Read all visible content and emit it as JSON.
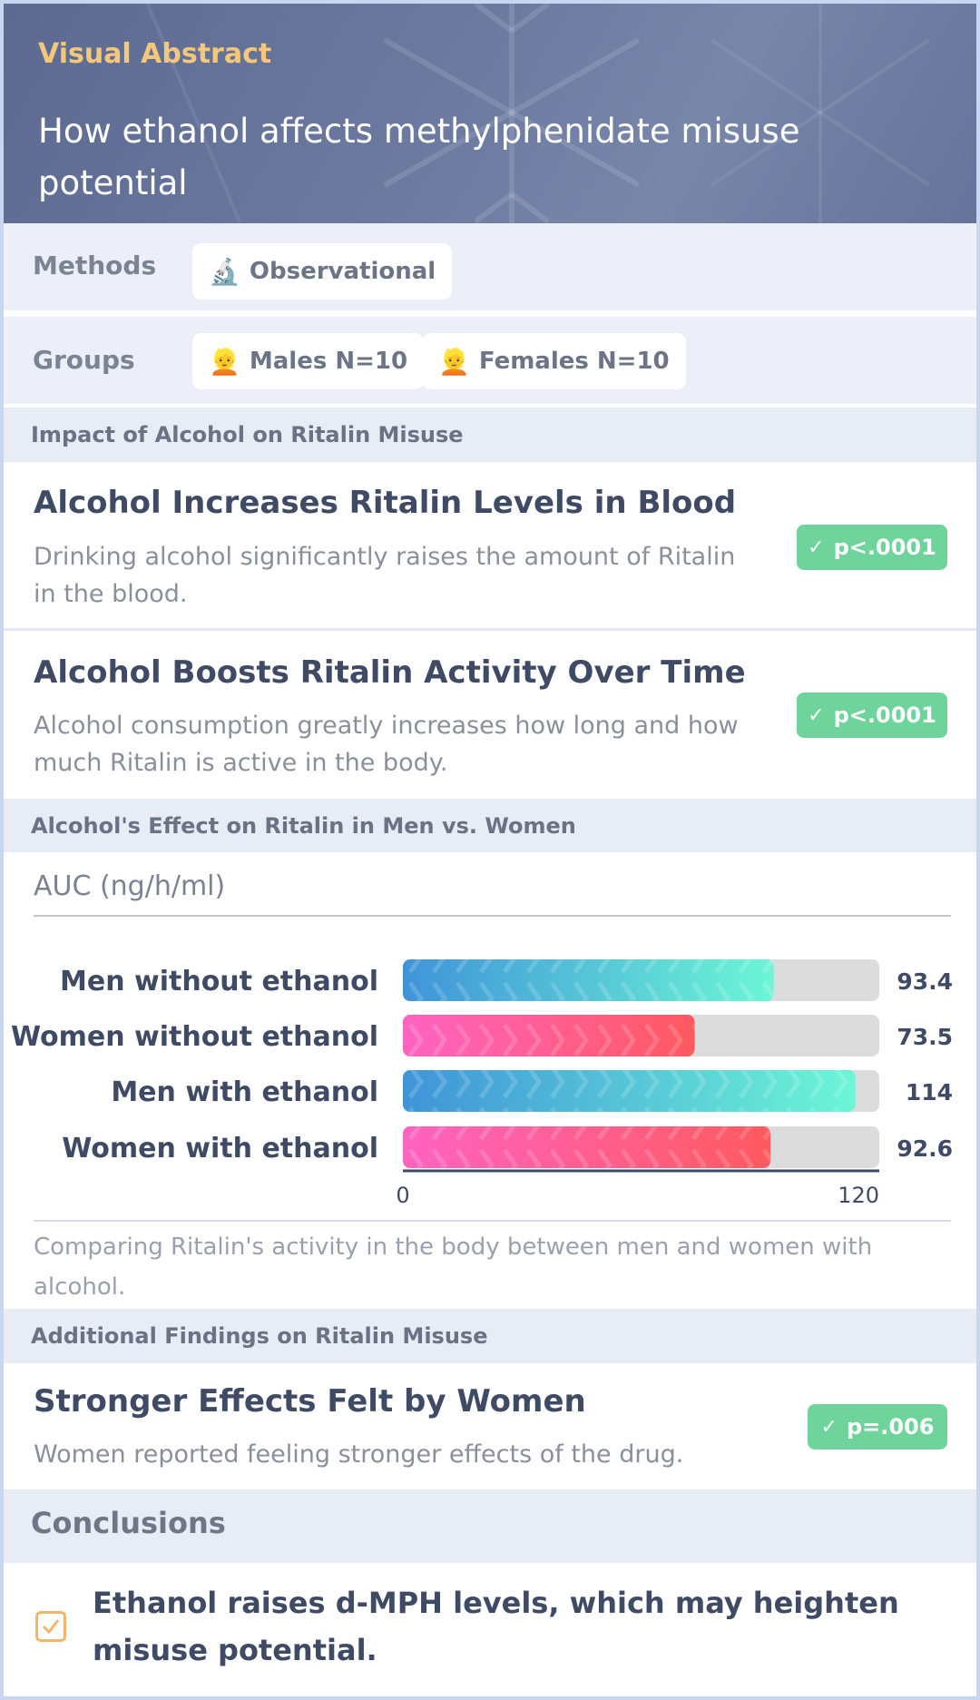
{
  "header": {
    "kicker": "Visual Abstract",
    "title": "How ethanol affects methylphenidate misuse potential"
  },
  "methods": {
    "label": "Methods",
    "chip": {
      "icon": "microscope-icon",
      "glyph": "🔬",
      "text": "Observational"
    }
  },
  "groups": {
    "label": "Groups",
    "chips": [
      {
        "icon": "person-icon",
        "glyph": "👱",
        "text": "Males N=10"
      },
      {
        "icon": "person-icon",
        "glyph": "👱",
        "text": "Females N=10"
      }
    ]
  },
  "sections": {
    "impact": "Impact of Alcohol on Ritalin Misuse",
    "sex": "Alcohol's Effect on Ritalin in Men vs. Women",
    "additional": "Additional Findings on Ritalin Misuse"
  },
  "findings": [
    {
      "title": "Alcohol Increases Ritalin Levels in Blood",
      "desc": "Drinking alcohol significantly raises the amount of Ritalin in the blood.",
      "badge": "p<.0001"
    },
    {
      "title": "Alcohol Boosts Ritalin Activity Over Time",
      "desc": "Alcohol consumption greatly increases how long and how much Ritalin is active in the body.",
      "badge": "p<.0001"
    }
  ],
  "additional_finding": {
    "title": "Stronger Effects Felt by Women",
    "desc": "Women reported feeling stronger effects of the drug.",
    "badge": "p=.006"
  },
  "chart_data": {
    "type": "bar",
    "orientation": "horizontal",
    "ylabel": "AUC (ng/h/ml)",
    "categories": [
      "Men without ethanol",
      "Women without ethanol",
      "Men with ethanol",
      "Women with ethanol"
    ],
    "values": [
      93.4,
      73.5,
      114,
      92.6
    ],
    "value_labels": [
      "93.4",
      "73.5",
      "114",
      "92.6"
    ],
    "xlim": [
      0,
      120
    ],
    "ticks": [
      "0",
      "120"
    ],
    "colors": {
      "men": [
        "#3f94d8",
        "#6cf6d6"
      ],
      "women": [
        "#ff63c2",
        "#ff5a5f"
      ],
      "track": "#dcdcdc"
    },
    "caption": "Comparing Ritalin's activity in the body between men and women with alcohol."
  },
  "conclusions": {
    "heading": "Conclusions",
    "items": [
      "Ethanol raises d-MPH levels, which may heighten misuse potential."
    ]
  },
  "colors": {
    "accent": "#f4c77a",
    "badge_green": "#6fd49c",
    "header_bg": "#66739a"
  }
}
